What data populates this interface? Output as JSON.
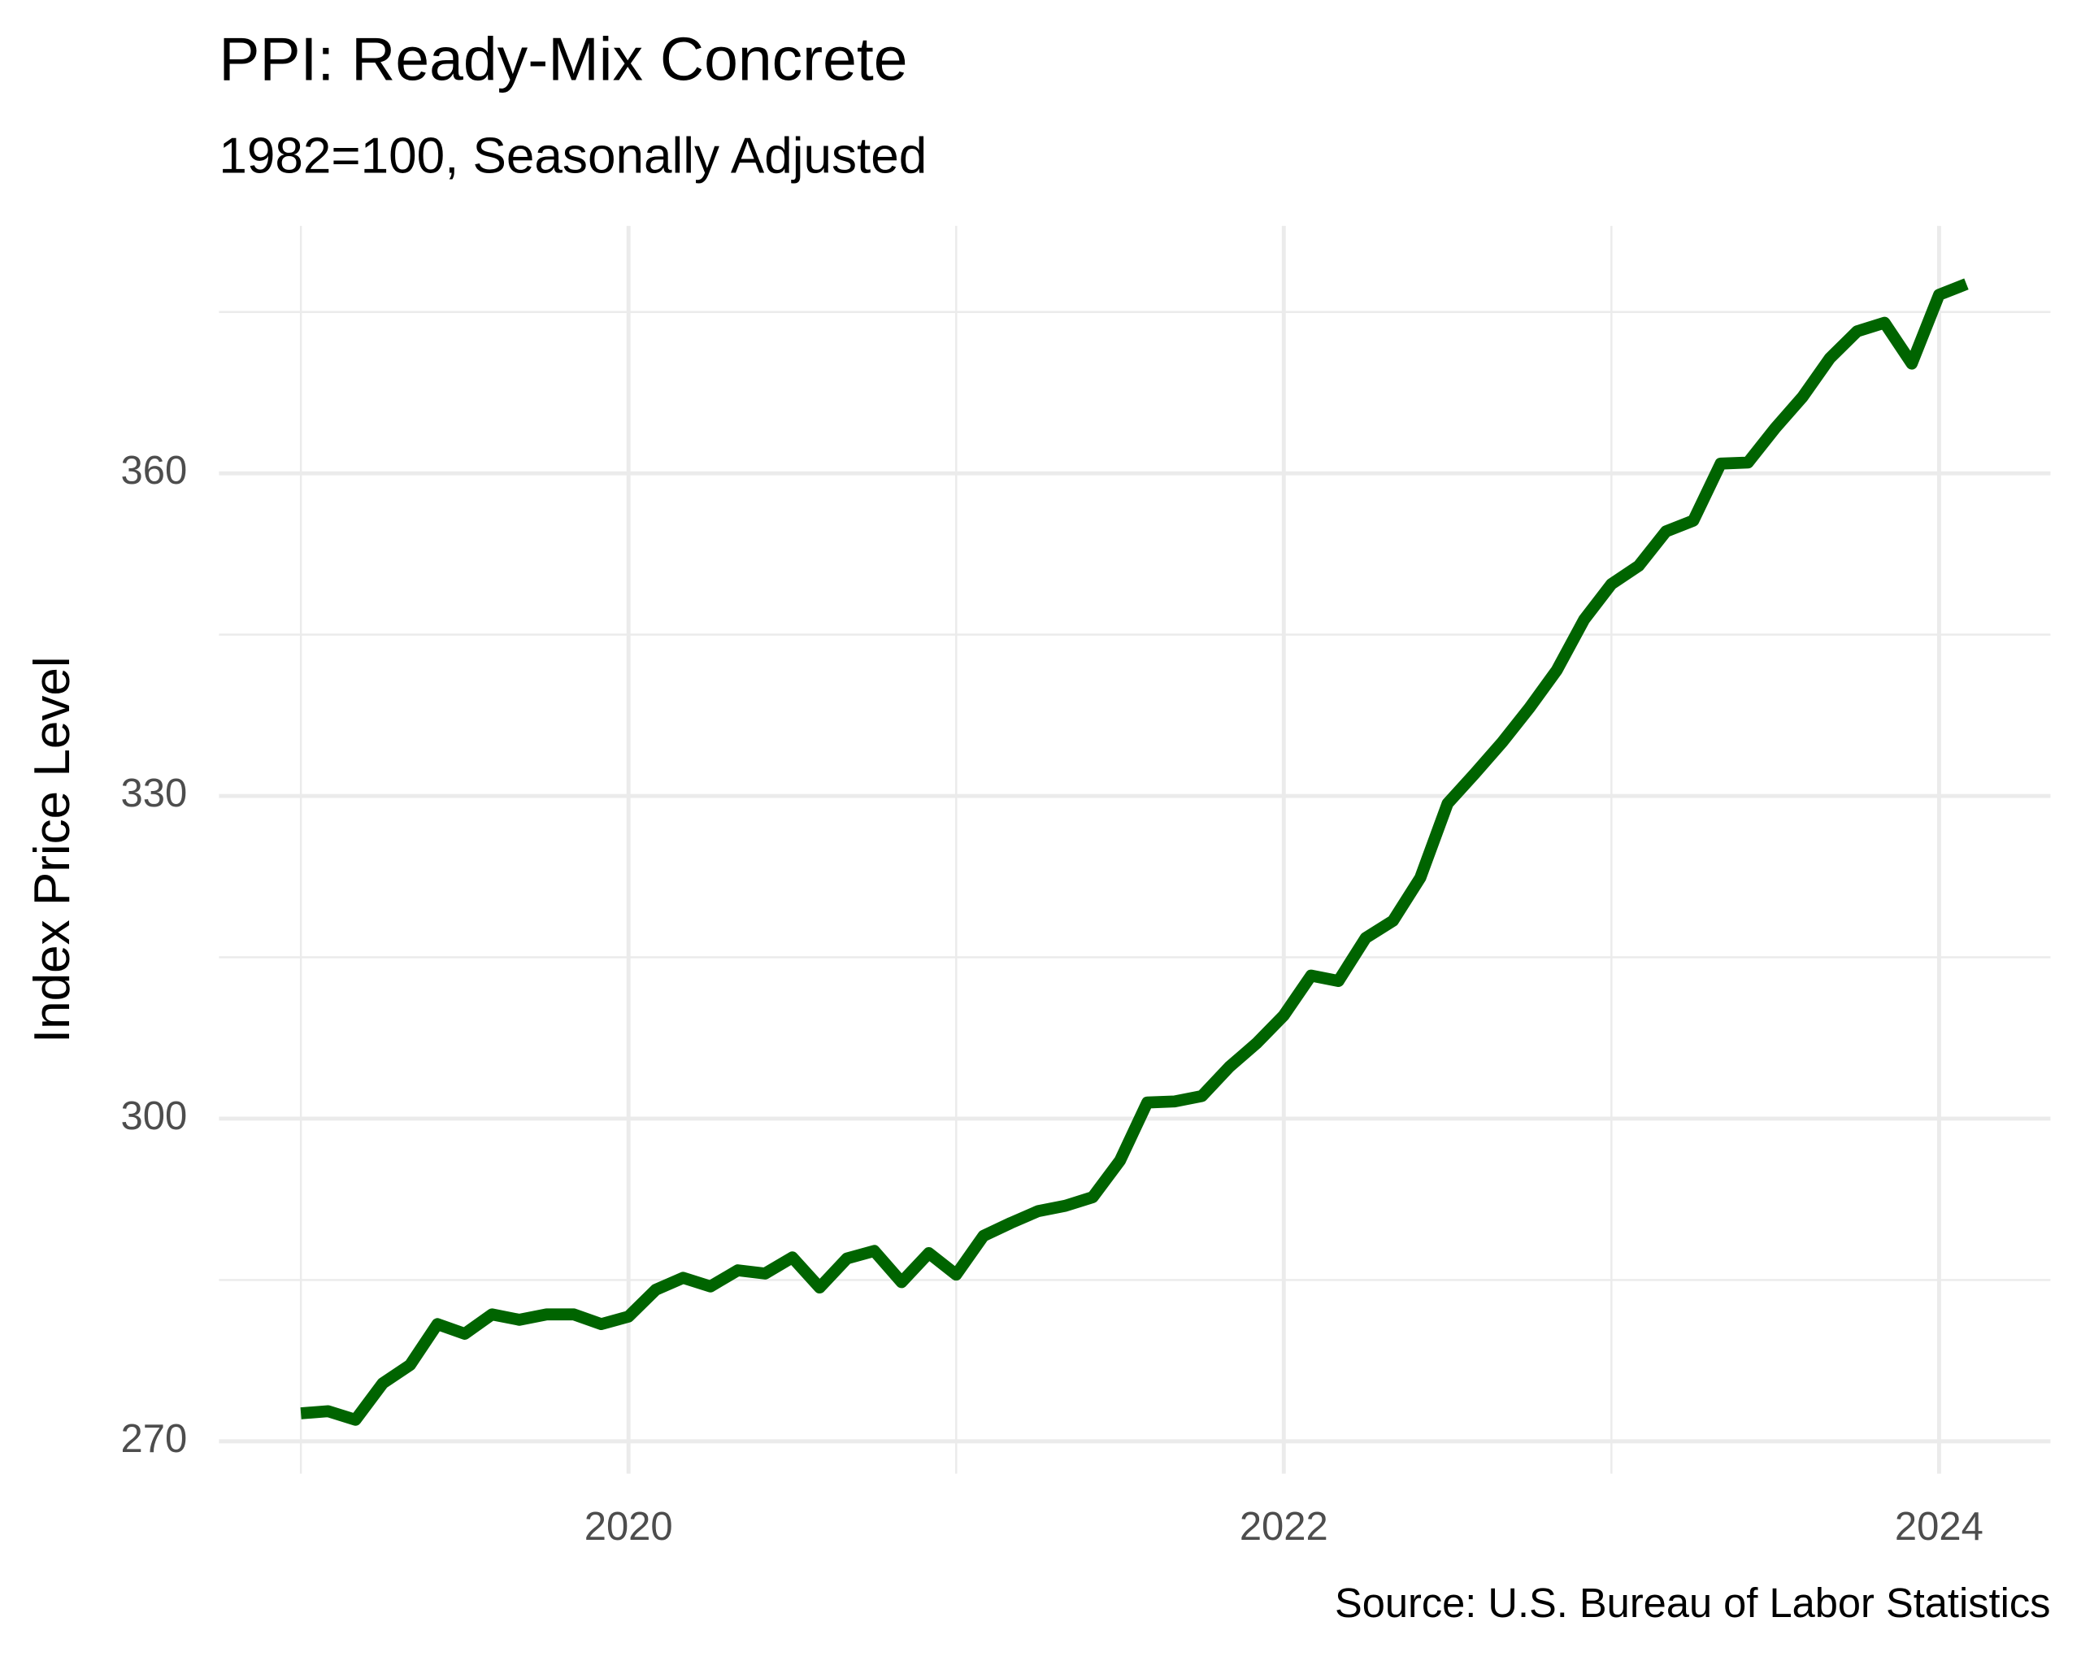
{
  "chart_data": {
    "type": "line",
    "title": "PPI: Ready-Mix Concrete",
    "subtitle": "1982=100, Seasonally Adjusted",
    "y_label": "Index Price Level",
    "source": "Source: U.S. Bureau of Labor Statistics",
    "x": [
      "2019-01",
      "2019-02",
      "2019-03",
      "2019-04",
      "2019-05",
      "2019-06",
      "2019-07",
      "2019-08",
      "2019-09",
      "2019-10",
      "2019-11",
      "2019-12",
      "2020-01",
      "2020-02",
      "2020-03",
      "2020-04",
      "2020-05",
      "2020-06",
      "2020-07",
      "2020-08",
      "2020-09",
      "2020-10",
      "2020-11",
      "2020-12",
      "2021-01",
      "2021-02",
      "2021-03",
      "2021-04",
      "2021-05",
      "2021-06",
      "2021-07",
      "2021-08",
      "2021-09",
      "2021-10",
      "2021-11",
      "2021-12",
      "2022-01",
      "2022-02",
      "2022-03",
      "2022-04",
      "2022-05",
      "2022-06",
      "2022-07",
      "2022-08",
      "2022-09",
      "2022-10",
      "2022-11",
      "2022-12",
      "2023-01",
      "2023-02",
      "2023-03",
      "2023-04",
      "2023-05",
      "2023-06",
      "2023-07",
      "2023-08",
      "2023-09",
      "2023-10",
      "2023-11",
      "2023-12",
      "2024-01",
      "2024-02"
    ],
    "series": [
      {
        "name": "PPI",
        "color": "#006400",
        "values": [
          272.6,
          272.8,
          272.0,
          275.4,
          277.1,
          280.9,
          280.0,
          281.8,
          281.3,
          281.8,
          281.8,
          280.9,
          281.6,
          284.1,
          285.2,
          284.4,
          285.9,
          285.6,
          287.1,
          284.3,
          287.0,
          287.7,
          284.8,
          287.5,
          285.5,
          289.1,
          290.3,
          291.4,
          291.9,
          292.7,
          296.1,
          301.5,
          301.6,
          302.1,
          304.8,
          307.0,
          309.6,
          313.3,
          312.8,
          316.8,
          318.4,
          322.4,
          329.3,
          332.1,
          335.0,
          338.2,
          341.7,
          346.4,
          349.7,
          351.4,
          354.6,
          355.6,
          360.9,
          361.0,
          364.2,
          367.1,
          370.7,
          373.2,
          374.0,
          370.2,
          376.6,
          377.6
        ]
      }
    ],
    "xlim": [
      2018.75,
      2024.34
    ],
    "xticks": [
      2020,
      2022,
      2024
    ],
    "xticks_minor": [
      2019,
      2021,
      2023
    ],
    "ylim": [
      267,
      383
    ],
    "yticks": [
      270,
      300,
      330,
      360
    ],
    "yticks_minor": [
      285,
      315,
      345,
      375
    ],
    "grid": true
  }
}
